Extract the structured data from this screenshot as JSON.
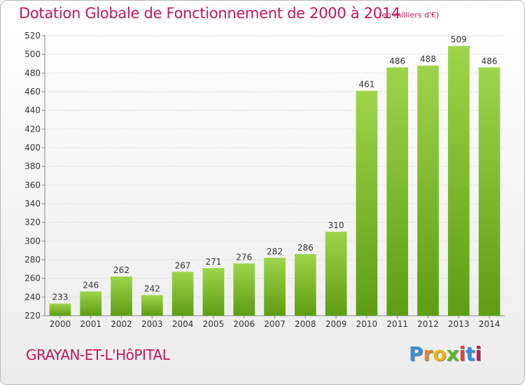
{
  "header": {
    "title": "Dotation Globale de Fonctionnement de 2000 à 2014",
    "subtitle": "(en milliers d'€)"
  },
  "footer": {
    "commune": "GRAYAN-ET-L'HôPITAL",
    "logo": [
      "P",
      "r",
      "o",
      "x",
      "i",
      "t",
      "i"
    ]
  },
  "colors": {
    "title": "#c2185b",
    "bar_top": "#9fd44a",
    "bar_bottom": "#5e9d12",
    "logo": [
      "#3a8fd6",
      "#e8862a",
      "#e8b81a",
      "#5cb82e",
      "#e0443a",
      "#3a8fd6",
      "#c2185b"
    ]
  },
  "chart_data": {
    "type": "bar",
    "title": "Dotation Globale de Fonctionnement de 2000 à 2014",
    "subtitle": "(en milliers d'€)",
    "categories": [
      "2000",
      "2001",
      "2002",
      "2003",
      "2004",
      "2005",
      "2006",
      "2007",
      "2008",
      "2009",
      "2010",
      "2011",
      "2012",
      "2013",
      "2014"
    ],
    "values": [
      233,
      246,
      262,
      242,
      267,
      271,
      276,
      282,
      286,
      310,
      461,
      486,
      488,
      509,
      486
    ],
    "ylim": [
      220,
      520
    ],
    "yticks": [
      220,
      240,
      260,
      280,
      300,
      320,
      340,
      360,
      380,
      400,
      420,
      440,
      460,
      480,
      500,
      520
    ],
    "grid": true,
    "data_labels": true
  }
}
